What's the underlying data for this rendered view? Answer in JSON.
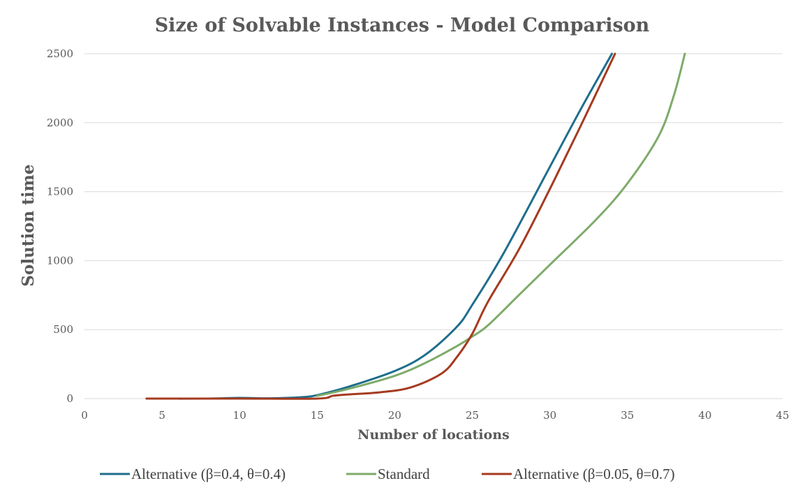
{
  "chart_data": {
    "type": "line",
    "title": "Size of Solvable Instances - Model Comparison",
    "xlabel": "Number of locations",
    "ylabel": "Solution time",
    "xlim": [
      0,
      45
    ],
    "ylim": [
      0,
      2500
    ],
    "x_ticks": [
      "0",
      "5",
      "10",
      "15",
      "20",
      "25",
      "30",
      "35",
      "40",
      "45"
    ],
    "y_ticks": [
      "0",
      "500",
      "1000",
      "1500",
      "2000",
      "2500"
    ],
    "grid": true,
    "legend_position": "bottom",
    "series": [
      {
        "name": "Alternative (β=0.4, θ=0.4)",
        "color": "#1f6e8c",
        "x": [
          4,
          8,
          10,
          12,
          14,
          15,
          17,
          20,
          22,
          24,
          25,
          27,
          30,
          32,
          34
        ],
        "y": [
          0,
          0,
          5,
          2,
          10,
          25,
          85,
          200,
          320,
          520,
          680,
          1050,
          1680,
          2100,
          2500
        ]
      },
      {
        "name": "Standard",
        "color": "#7dab6a",
        "x": [
          15,
          17,
          20,
          22,
          24,
          25,
          26,
          28,
          30,
          33,
          35,
          37,
          38,
          38.7
        ],
        "y": [
          20,
          70,
          165,
          260,
          380,
          450,
          530,
          750,
          970,
          1300,
          1560,
          1900,
          2200,
          2500
        ]
      },
      {
        "name": "Alternative (β=0.05, θ=0.7)",
        "color": "#a63a1f",
        "x": [
          4,
          10,
          15,
          16,
          17,
          19,
          21,
          23,
          24,
          25,
          26,
          28,
          30,
          32,
          34.2
        ],
        "y": [
          0,
          0,
          0,
          20,
          30,
          45,
          80,
          180,
          300,
          470,
          700,
          1080,
          1520,
          1980,
          2500
        ]
      }
    ]
  }
}
